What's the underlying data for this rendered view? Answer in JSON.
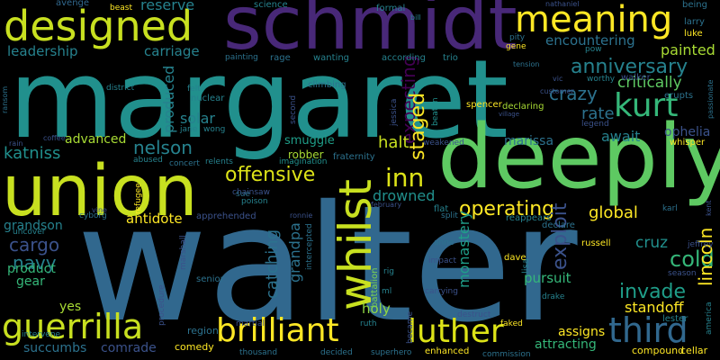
{
  "words": [
    {
      "text": "walter",
      "color": "#31688e"
    },
    {
      "text": "margaret",
      "color": "#21908d"
    },
    {
      "text": "schmidt",
      "color": "#482878"
    },
    {
      "text": "deeply",
      "color": "#5ec962"
    },
    {
      "text": "union",
      "color": "#c8e020"
    },
    {
      "text": "designed",
      "color": "#c8e020"
    },
    {
      "text": "meaning",
      "color": "#fde725"
    },
    {
      "text": "whilst",
      "color": "#c8e020"
    },
    {
      "text": "brilliant",
      "color": "#fde725"
    },
    {
      "text": "luther",
      "color": "#dde318"
    },
    {
      "text": "guerrilla",
      "color": "#c8e020"
    },
    {
      "text": "third",
      "color": "#31688e"
    },
    {
      "text": "kurt",
      "color": "#35b779"
    },
    {
      "text": "anniversary",
      "color": "#26828e"
    },
    {
      "text": "critically",
      "color": "#5ec962"
    },
    {
      "text": "painted",
      "color": "#a8db34"
    },
    {
      "text": "encountering",
      "color": "#2c728e"
    },
    {
      "text": "reserve",
      "color": "#26828e"
    },
    {
      "text": "leadership",
      "color": "#26828e"
    },
    {
      "text": "carriage",
      "color": "#26828e"
    },
    {
      "text": "produced",
      "color": "#26828e"
    },
    {
      "text": "crazy",
      "color": "#2c728e"
    },
    {
      "text": "rate",
      "color": "#2c728e"
    },
    {
      "text": "expecting",
      "color": "#440154"
    },
    {
      "text": "nelson",
      "color": "#26828e"
    },
    {
      "text": "katniss",
      "color": "#21908d"
    },
    {
      "text": "offensive",
      "color": "#dde318"
    },
    {
      "text": "inn",
      "color": "#dde318"
    },
    {
      "text": "staged",
      "color": "#fde725"
    },
    {
      "text": "solar",
      "color": "#26828e"
    },
    {
      "text": "advanced",
      "color": "#a8db34"
    },
    {
      "text": "halt",
      "color": "#c8e020"
    },
    {
      "text": "marissa",
      "color": "#2c728e"
    },
    {
      "text": "await",
      "color": "#26828e"
    },
    {
      "text": "ophelia",
      "color": "#3b528b"
    },
    {
      "text": "cold",
      "color": "#35b779"
    },
    {
      "text": "catching",
      "color": "#2c728e"
    },
    {
      "text": "operating",
      "color": "#fde725"
    },
    {
      "text": "global",
      "color": "#fde725"
    },
    {
      "text": "drowned",
      "color": "#21908d"
    },
    {
      "text": "antidote",
      "color": "#fde725"
    },
    {
      "text": "grandson",
      "color": "#26828e"
    },
    {
      "text": "cargo",
      "color": "#3b528b"
    },
    {
      "text": "navy",
      "color": "#26828e"
    },
    {
      "text": "product",
      "color": "#35b779"
    },
    {
      "text": "gear",
      "color": "#35b779"
    },
    {
      "text": "yes",
      "color": "#a8db34"
    },
    {
      "text": "grandpa",
      "color": "#2c728e"
    },
    {
      "text": "holy",
      "color": "#90d743"
    },
    {
      "text": "monastery",
      "color": "#1f9e89"
    },
    {
      "text": "exploit",
      "color": "#3b528b"
    },
    {
      "text": "invade",
      "color": "#1f9e89"
    },
    {
      "text": "lincoln",
      "color": "#fde725"
    },
    {
      "text": "cruz",
      "color": "#21908d"
    },
    {
      "text": "pursuit",
      "color": "#35b779"
    },
    {
      "text": "standoff",
      "color": "#fde725"
    },
    {
      "text": "assigns",
      "color": "#fde725"
    },
    {
      "text": "attracting",
      "color": "#35b779"
    },
    {
      "text": "succumbs",
      "color": "#2c728e"
    },
    {
      "text": "comrade",
      "color": "#3b528b"
    },
    {
      "text": "comedy",
      "color": "#fde725"
    },
    {
      "text": "region",
      "color": "#2c728e"
    },
    {
      "text": "senior",
      "color": "#2c728e"
    },
    {
      "text": "battalion",
      "color": "#7ad151"
    },
    {
      "text": "lisa",
      "color": "#26828e"
    },
    {
      "text": "enhanced",
      "color": "#fde725"
    },
    {
      "text": "lester",
      "color": "#26828e"
    },
    {
      "text": "compound",
      "color": "#fde725"
    },
    {
      "text": "cellar",
      "color": "#fde725"
    },
    {
      "text": "russell",
      "color": "#fde725"
    },
    {
      "text": "dave",
      "color": "#fde725"
    },
    {
      "text": "whisper",
      "color": "#fde725"
    },
    {
      "text": "erupts",
      "color": "#2c728e"
    },
    {
      "text": "avenge",
      "color": "#31688e"
    },
    {
      "text": "beast",
      "color": "#fde725"
    },
    {
      "text": "science",
      "color": "#26828e"
    },
    {
      "text": "formal",
      "color": "#26828e"
    },
    {
      "text": "being",
      "color": "#2c728e"
    },
    {
      "text": "larry",
      "color": "#2c728e"
    },
    {
      "text": "luke",
      "color": "#fde725"
    },
    {
      "text": "rage",
      "color": "#2c728e"
    },
    {
      "text": "wanting",
      "color": "#26828e"
    },
    {
      "text": "according",
      "color": "#26828e"
    },
    {
      "text": "trio",
      "color": "#26828e"
    },
    {
      "text": "walker",
      "color": "#3b528b"
    },
    {
      "text": "pow",
      "color": "#26828e"
    },
    {
      "text": "gene",
      "color": "#fde725"
    },
    {
      "text": "pity",
      "color": "#2c728e"
    },
    {
      "text": "spencer",
      "color": "#fde725"
    },
    {
      "text": "declaring",
      "color": "#a8db34"
    },
    {
      "text": "climbing",
      "color": "#2c728e"
    },
    {
      "text": "nuclear",
      "color": "#26828e"
    },
    {
      "text": "felt",
      "color": "#26828e"
    },
    {
      "text": "wong",
      "color": "#26828e"
    },
    {
      "text": "jane",
      "color": "#26828e"
    },
    {
      "text": "second",
      "color": "#3b528b"
    },
    {
      "text": "painting",
      "color": "#2c728e"
    },
    {
      "text": "district",
      "color": "#26828e"
    },
    {
      "text": "smuggle",
      "color": "#1f9e89"
    },
    {
      "text": "robber",
      "color": "#a8db34"
    },
    {
      "text": "fraternity",
      "color": "#2c728e"
    },
    {
      "text": "imagination",
      "color": "#21908d"
    },
    {
      "text": "abused",
      "color": "#26828e"
    },
    {
      "text": "concert",
      "color": "#2c728e"
    },
    {
      "text": "relents",
      "color": "#26828e"
    },
    {
      "text": "chainsaw",
      "color": "#3b528b"
    },
    {
      "text": "poison",
      "color": "#26828e"
    },
    {
      "text": "sue",
      "color": "#2c728e"
    },
    {
      "text": "apprehended",
      "color": "#3b528b"
    },
    {
      "text": "cyborg",
      "color": "#2c728e"
    },
    {
      "text": "uncover",
      "color": "#26828e"
    },
    {
      "text": "refugee",
      "color": "#fde725"
    },
    {
      "text": "flat",
      "color": "#26828e"
    },
    {
      "text": "split",
      "color": "#2c728e"
    },
    {
      "text": "impact",
      "color": "#3b528b"
    },
    {
      "text": "reappears",
      "color": "#26828e"
    },
    {
      "text": "declare",
      "color": "#2c728e"
    },
    {
      "text": "jessica",
      "color": "#3b528b"
    },
    {
      "text": "beaten",
      "color": "#21908d"
    },
    {
      "text": "weakened",
      "color": "#3b528b"
    },
    {
      "text": "faked",
      "color": "#fde725"
    },
    {
      "text": "ruth",
      "color": "#26828e"
    },
    {
      "text": "decided",
      "color": "#2c728e"
    },
    {
      "text": "superhero",
      "color": "#2c728e"
    },
    {
      "text": "thousand",
      "color": "#2c728e"
    },
    {
      "text": "martial",
      "color": "#3b528b"
    },
    {
      "text": "intervene",
      "color": "#26828e"
    },
    {
      "text": "rig",
      "color": "#26828e"
    },
    {
      "text": "ml",
      "color": "#26828e"
    },
    {
      "text": "intercepted",
      "color": "#2c728e"
    },
    {
      "text": "carrying",
      "color": "#3b528b"
    },
    {
      "text": "destruct",
      "color": "#3b528b"
    },
    {
      "text": "drake",
      "color": "#26828e"
    },
    {
      "text": "season",
      "color": "#3b528b"
    },
    {
      "text": "anne",
      "color": "#2c728e"
    },
    {
      "text": "commission",
      "color": "#2c728e"
    },
    {
      "text": "became",
      "color": "#3b528b"
    },
    {
      "text": "karl",
      "color": "#2c728e"
    },
    {
      "text": "jeffrey",
      "color": "#3b528b"
    },
    {
      "text": "kent",
      "color": "#3b528b"
    },
    {
      "text": "america",
      "color": "#26828e"
    },
    {
      "text": "passionate",
      "color": "#2c728e"
    },
    {
      "text": "legend",
      "color": "#3b528b"
    },
    {
      "text": "customer",
      "color": "#3b528b"
    },
    {
      "text": "worthy",
      "color": "#26828e"
    },
    {
      "text": "tension",
      "color": "#2c728e"
    },
    {
      "text": "nathaniel",
      "color": "#3b528b"
    },
    {
      "text": "bill",
      "color": "#26828e"
    },
    {
      "text": "vic",
      "color": "#3b528b"
    },
    {
      "text": "ransom",
      "color": "#2c728e"
    },
    {
      "text": "rain",
      "color": "#3b528b"
    },
    {
      "text": "coffee",
      "color": "#3b528b"
    },
    {
      "text": "vine",
      "color": "#3b528b"
    },
    {
      "text": "ronnie",
      "color": "#3b528b"
    },
    {
      "text": "procedure",
      "color": "#3b528b"
    },
    {
      "text": "marshall",
      "color": "#3b528b"
    },
    {
      "text": "february",
      "color": "#3b528b"
    },
    {
      "text": "village",
      "color": "#3b528b"
    }
  ]
}
